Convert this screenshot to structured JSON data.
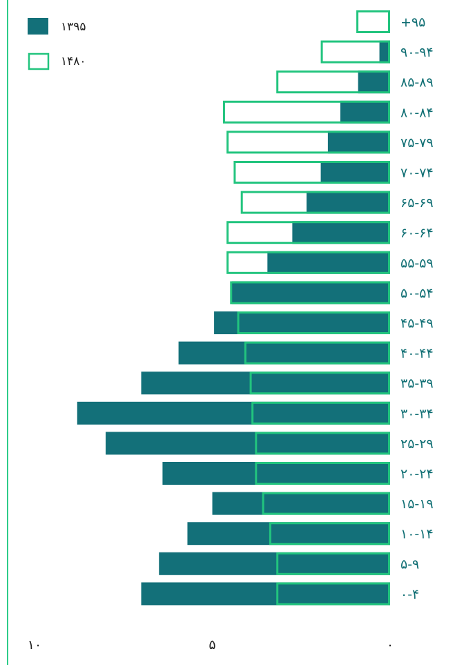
{
  "chart_data": {
    "type": "bar",
    "orientation": "horizontal",
    "categories": [
      "+۹۵",
      "۹۰-۹۴",
      "۸۵-۸۹",
      "۸۰-۸۴",
      "۷۵-۷۹",
      "۷۰-۷۴",
      "۶۵-۶۹",
      "۶۰-۶۴",
      "۵۵-۵۹",
      "۵۰-۵۴",
      "۴۵-۴۹",
      "۴۰-۴۴",
      "۳۵-۳۹",
      "۳۰-۳۴",
      "۲۵-۲۹",
      "۲۰-۲۴",
      "۱۵-۱۹",
      "۱۰-۱۴",
      "۵-۹",
      "۰-۴"
    ],
    "series": [
      {
        "name": "۱۳۹۵",
        "style": "filled",
        "color": "#137079",
        "values": [
          0.0,
          0.3,
          0.9,
          1.4,
          1.75,
          1.95,
          2.35,
          2.75,
          3.45,
          4.45,
          4.95,
          5.95,
          7.0,
          8.8,
          8.0,
          6.4,
          5.0,
          5.7,
          6.5,
          7.0
        ]
      },
      {
        "name": "۱۴۸۰",
        "style": "outline",
        "color": "#22c47e",
        "values": [
          0.95,
          1.95,
          3.2,
          4.7,
          4.6,
          4.4,
          4.2,
          4.6,
          4.6,
          4.5,
          4.3,
          4.1,
          3.95,
          3.9,
          3.8,
          3.8,
          3.6,
          3.4,
          3.2,
          3.2
        ]
      }
    ],
    "xlim": [
      0,
      10
    ],
    "x_direction": "right-to-left",
    "xticks": [
      {
        "value": 10,
        "label": "۱۰"
      },
      {
        "value": 5,
        "label": "۵"
      },
      {
        "value": 0,
        "label": "۰"
      }
    ],
    "legend_position": "top-left",
    "grid": false
  }
}
